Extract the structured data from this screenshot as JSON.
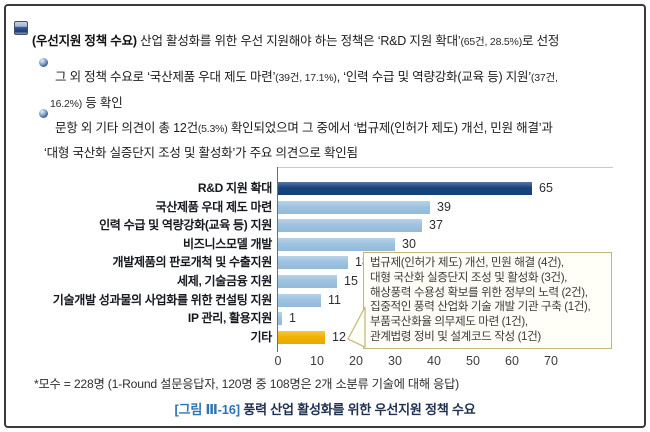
{
  "bullets": {
    "b1": {
      "bold": "(우선지원 정책 수요)",
      "t1": " 산업 활성화를 위한 우선 지원해야 하는 정책은 ‘R&D 지원 확대’",
      "small1": "(65건, 28.5%)",
      "t2": "로 선정"
    },
    "b2": {
      "l1t1": "그 외 정책 수요로 ‘국산제품 우대 제도 마련’",
      "l1s1": "(39건, 17.1%)",
      "l1t2": ", ‘인력 수급 및 역량강화(교육 등) 지원’",
      "l1s2": "(37건,",
      "l2s1": "16.2%)",
      "l2t1": " 등 확인"
    },
    "b3": {
      "l1t1": "문항 외 기타 의견이 총 12건",
      "l1s1": "(5.3%)",
      "l1t2": " 확인되었으며 그 중에서 ‘법규제(인허가 제도) 개선, 민원 해결’과",
      "l2t1": "‘대형 국산화 실증단지 조성 및 활성화’가 주요 의견으로 확인됨"
    }
  },
  "chart_data": {
    "type": "bar",
    "orientation": "horizontal",
    "title": "",
    "xlabel": "",
    "ylabel": "",
    "categories": [
      "R&D 지원 확대",
      "국산제품 우대 제도 마련",
      "인력 수급 및 역량강화(교육 등) 지원",
      "비즈니스모델 개발",
      "개발제품의 판로개척 및 수출지원",
      "세제, 기술금융 지원",
      "기술개발 성과물의 사업화를 위한 컨설팅 지원",
      "IP 관리, 활용지원",
      "기타"
    ],
    "values": [
      65,
      39,
      37,
      30,
      18,
      15,
      11,
      1,
      12
    ],
    "bar_colors": [
      "#17437E",
      "#9DC3E2",
      "#9DC3E2",
      "#9DC3E2",
      "#9DC3E2",
      "#9DC3E2",
      "#9DC3E2",
      "#9DC3E2",
      "#F2B200"
    ],
    "x_ticks": [
      0,
      10,
      20,
      30,
      40,
      50,
      60,
      70
    ],
    "xlim": [
      0,
      70
    ],
    "grid": false,
    "legend": false,
    "callout": {
      "lines": [
        "법규제(인허가 제도) 개선, 민원 해결 (4건),",
        "대형 국산화 실증단지 조성 및 활성화 (3건),",
        "해상풍력 수용성 확보를 위한 정부의 노력 (2건),",
        "집중적인 풍력 산업화 기술 개발 기관 구축 (1건),",
        "부품국산화율 의무제도 마련 (1건),",
        "관계법령 정비 및 설계코드 작성 (1건)"
      ]
    }
  },
  "footnote": "*모수 = 228명 (1-Round 설문응답자, 120명 중 108명은 2개 소분류 기술에 대해 응답)",
  "caption": {
    "tag": "[그림 Ⅲ-16]",
    "text": "풍력 산업 활성화를 위한 우선지원 정책 수요"
  },
  "colors": {
    "navy_bar": "#17437E",
    "light_bar": "#9DC3E2",
    "etc_bar": "#F2B200",
    "caption_tag_blue": "#2E74B5",
    "callout_border": "#C5B578",
    "frame_border": "#3A3A3A"
  }
}
